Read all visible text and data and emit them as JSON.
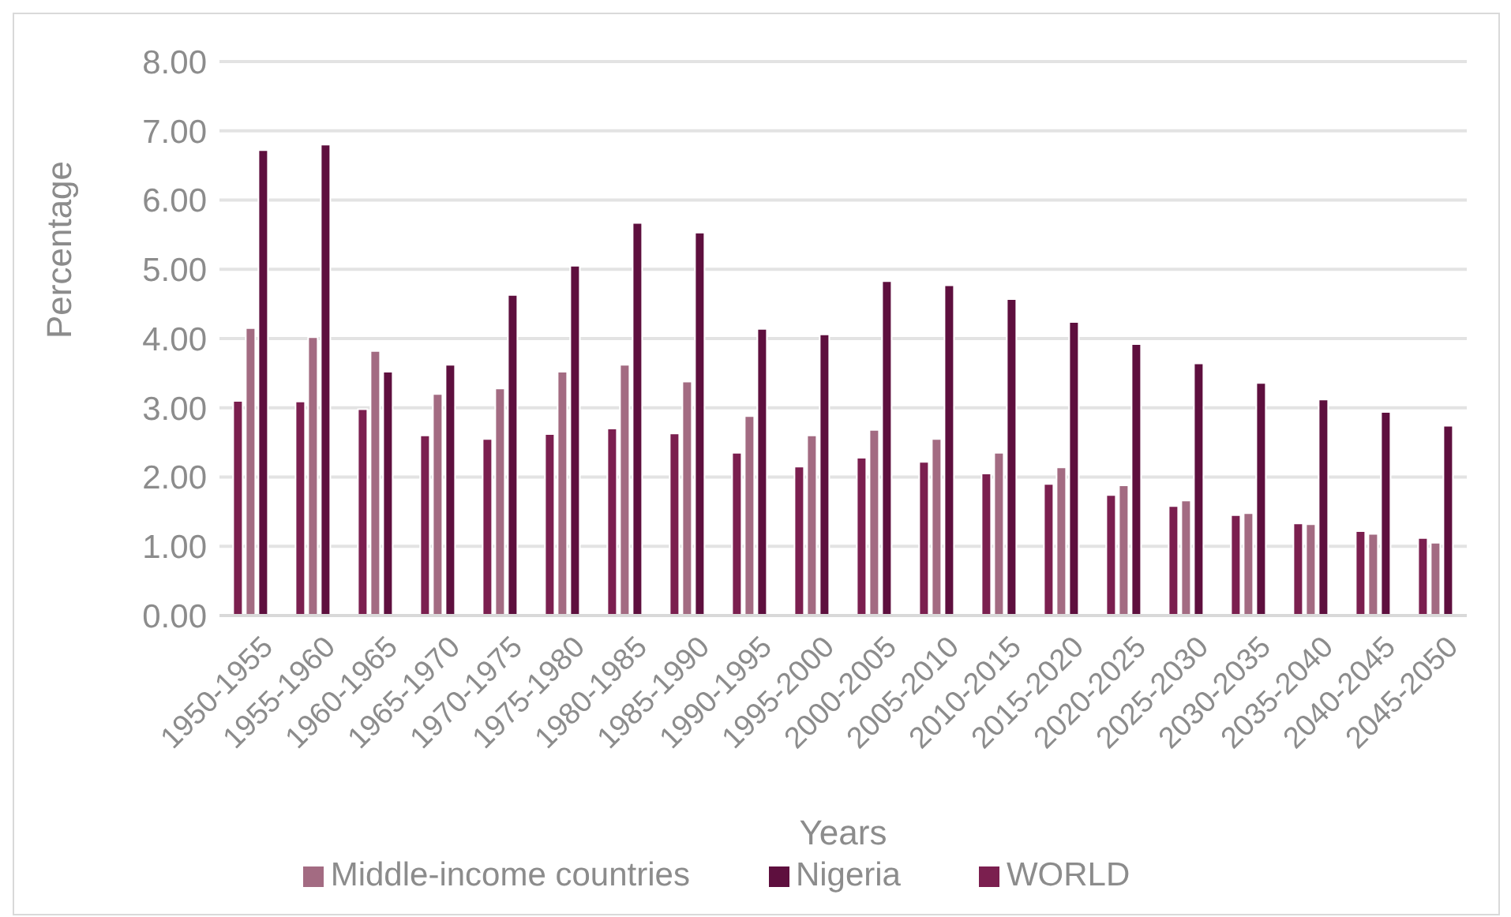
{
  "chart_data": {
    "type": "bar",
    "xlabel": "Years",
    "ylabel": "Percentage",
    "categories": [
      "1950-1955",
      "1955-1960",
      "1960-1965",
      "1965-1970",
      "1970-1975",
      "1975-1980",
      "1980-1985",
      "1985-1990",
      "1990-1995",
      "1995-2000",
      "2000-2005",
      "2005-2010",
      "2010-2015",
      "2015-2020",
      "2020-2025",
      "2025-2030",
      "2030-2035",
      "2035-2040",
      "2040-2045",
      "2045-2050"
    ],
    "series": [
      {
        "name": "WORLD",
        "color": "#7b1f4f",
        "values": [
          3.1,
          3.09,
          2.98,
          2.6,
          2.55,
          2.62,
          2.7,
          2.63,
          2.35,
          2.15,
          2.28,
          2.22,
          2.05,
          1.9,
          1.74,
          1.58,
          1.45,
          1.33,
          1.22,
          1.12
        ]
      },
      {
        "name": "Middle-income countries",
        "color": "#a36b82",
        "values": [
          4.15,
          4.02,
          3.82,
          3.2,
          3.28,
          3.52,
          3.62,
          3.38,
          2.88,
          2.6,
          2.68,
          2.55,
          2.35,
          2.14,
          1.88,
          1.66,
          1.48,
          1.32,
          1.18,
          1.05
        ]
      },
      {
        "name": "Nigeria",
        "color": "#5e0f3e",
        "values": [
          6.72,
          6.8,
          3.52,
          3.62,
          4.63,
          5.05,
          5.67,
          5.53,
          4.14,
          4.06,
          4.83,
          4.77,
          4.57,
          4.24,
          3.92,
          3.64,
          3.36,
          3.12,
          2.94,
          2.74
        ]
      }
    ],
    "ylim": [
      0,
      8
    ],
    "yticks": [
      {
        "value": 0,
        "label": "0.00"
      },
      {
        "value": 1,
        "label": "1.00"
      },
      {
        "value": 2,
        "label": "2.00"
      },
      {
        "value": 3,
        "label": "3.00"
      },
      {
        "value": 4,
        "label": "4.00"
      },
      {
        "value": 5,
        "label": "5.00"
      },
      {
        "value": 6,
        "label": "6.00"
      },
      {
        "value": 7,
        "label": "7.00"
      },
      {
        "value": 8,
        "label": "8.00"
      }
    ],
    "grid": "y",
    "legend": "bottom"
  }
}
